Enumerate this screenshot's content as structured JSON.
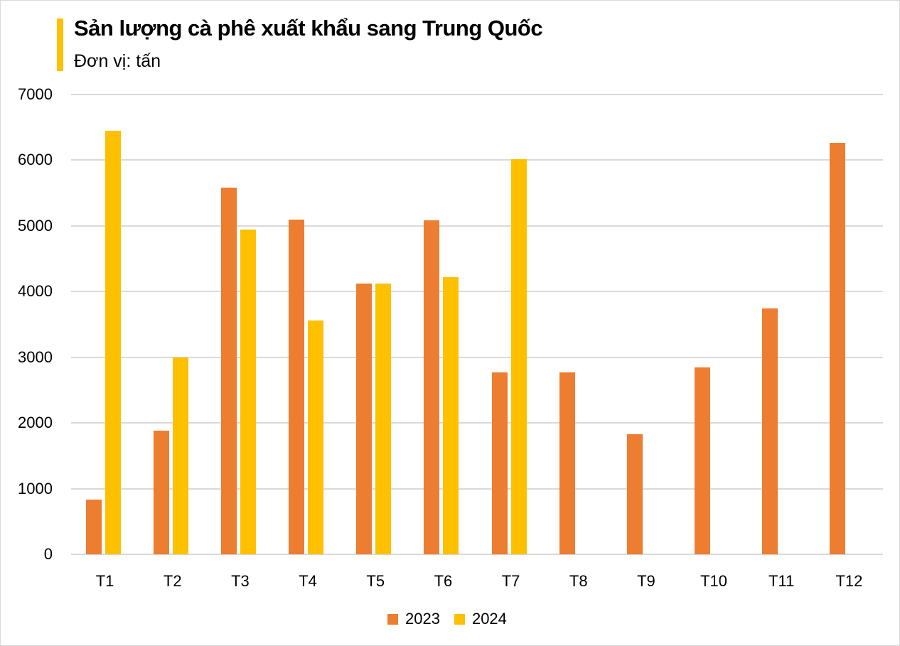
{
  "header": {
    "title": "Sản lượng cà phê xuất khẩu sang Trung Quốc",
    "subtitle": "Đơn vị: tấn",
    "accent_color": "#ffc000"
  },
  "axis": {
    "y_ticks": [
      "7000",
      "6000",
      "5000",
      "4000",
      "3000",
      "2000",
      "1000",
      "0"
    ],
    "x_ticks": [
      "T1",
      "T2",
      "T3",
      "T4",
      "T5",
      "T6",
      "T7",
      "T8",
      "T9",
      "T10",
      "T11",
      "T12"
    ]
  },
  "legend": {
    "items": [
      {
        "label": "2023",
        "color": "#ed7d31"
      },
      {
        "label": "2024",
        "color": "#ffc000"
      }
    ]
  },
  "chart_data": {
    "type": "bar",
    "title": "Sản lượng cà phê xuất khẩu sang Trung Quốc",
    "subtitle": "Đơn vị: tấn",
    "xlabel": "",
    "ylabel": "",
    "ylim": [
      0,
      7000
    ],
    "grid": true,
    "legend_position": "bottom",
    "categories": [
      "T1",
      "T2",
      "T3",
      "T4",
      "T5",
      "T6",
      "T7",
      "T8",
      "T9",
      "T10",
      "T11",
      "T12"
    ],
    "series": [
      {
        "name": "2023",
        "color": "#ed7d31",
        "values": [
          830,
          1880,
          5580,
          5100,
          4120,
          5080,
          2770,
          2770,
          1830,
          2850,
          3740,
          6260
        ]
      },
      {
        "name": "2024",
        "color": "#ffc000",
        "values": [
          6450,
          3000,
          4940,
          3560,
          4120,
          4220,
          6020,
          null,
          null,
          null,
          null,
          null
        ]
      }
    ]
  }
}
